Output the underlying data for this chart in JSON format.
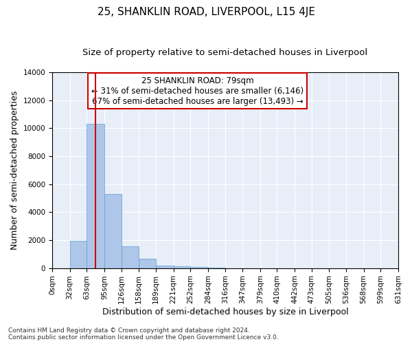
{
  "title": "25, SHANKLIN ROAD, LIVERPOOL, L15 4JE",
  "subtitle": "Size of property relative to semi-detached houses in Liverpool",
  "xlabel": "Distribution of semi-detached houses by size in Liverpool",
  "ylabel": "Number of semi-detached properties",
  "footer_line1": "Contains HM Land Registry data © Crown copyright and database right 2024.",
  "footer_line2": "Contains public sector information licensed under the Open Government Licence v3.0.",
  "property_label": "25 SHANKLIN ROAD: 79sqm",
  "smaller_text": "← 31% of semi-detached houses are smaller (6,146)",
  "larger_text": "67% of semi-detached houses are larger (13,493) →",
  "property_size": 79,
  "bin_edges": [
    0,
    32,
    63,
    95,
    126,
    158,
    189,
    221,
    252,
    284,
    316,
    347,
    379,
    410,
    442,
    473,
    505,
    536,
    568,
    599,
    631
  ],
  "bar_values": [
    0,
    1950,
    10300,
    5300,
    1550,
    650,
    200,
    120,
    90,
    50,
    0,
    0,
    0,
    0,
    0,
    0,
    0,
    0,
    0,
    0
  ],
  "bar_color": "#aec6e8",
  "bar_edge_color": "#5a9fd4",
  "vline_color": "#cc0000",
  "vline_x": 79,
  "ylim": [
    0,
    14000
  ],
  "yticks": [
    0,
    2000,
    4000,
    6000,
    8000,
    10000,
    12000,
    14000
  ],
  "background_color": "#e8eef8",
  "annotation_box_color": "#ffffff",
  "annotation_box_edge": "#cc0000",
  "title_fontsize": 11,
  "subtitle_fontsize": 9.5,
  "axis_label_fontsize": 9,
  "tick_fontsize": 7.5,
  "annotation_fontsize": 8.5,
  "footer_fontsize": 6.5
}
